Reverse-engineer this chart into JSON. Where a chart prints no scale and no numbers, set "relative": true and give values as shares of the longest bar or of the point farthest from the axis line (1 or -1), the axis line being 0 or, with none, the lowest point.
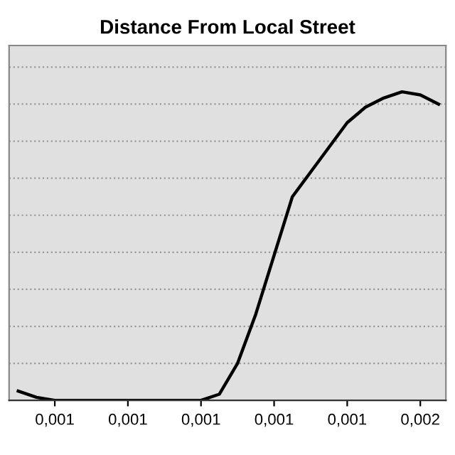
{
  "chart_data": {
    "type": "line",
    "title": "Distance From Local Street",
    "relative": true,
    "categories": [
      null,
      null,
      "0,001",
      null,
      null,
      null,
      "0,001",
      null,
      null,
      null,
      "0,001",
      null,
      null,
      null,
      "0,001",
      null,
      null,
      null,
      "0,001",
      null,
      null,
      null,
      "0,002",
      null
    ],
    "series": [
      {
        "color": "#000000",
        "values": [
          0.03,
          0.01,
          0,
          0,
          0,
          0,
          0,
          0,
          0,
          0,
          0,
          0.02,
          0.12,
          0.28,
          0.47,
          0.66,
          0.74,
          0.82,
          0.9,
          0.95,
          0.98,
          1.0,
          0.99,
          0.96
        ]
      }
    ],
    "grid": "y",
    "legend": false,
    "marker": "none",
    "line_style": "solid"
  }
}
